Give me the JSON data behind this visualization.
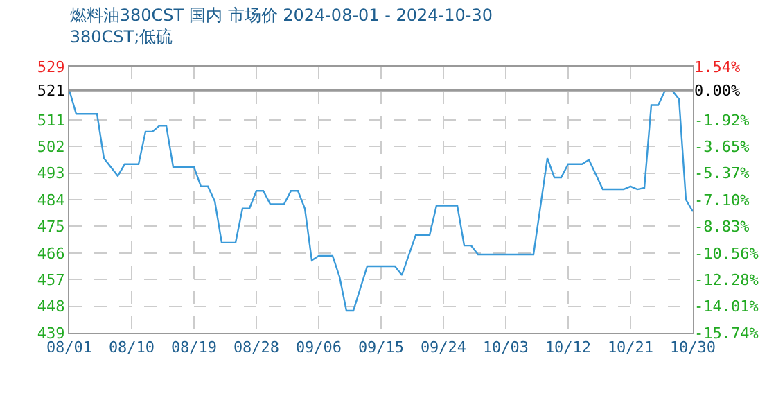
{
  "chart_data": {
    "type": "line",
    "title": "燃料油380CST 国内 市场价 2024-08-01 - 2024-10-30",
    "subtitle": "380CST;低硫",
    "x": [
      "2024-08-01",
      "2024-08-02",
      "2024-08-05",
      "2024-08-06",
      "2024-08-08",
      "2024-08-09",
      "2024-08-11",
      "2024-08-12",
      "2024-08-13",
      "2024-08-14",
      "2024-08-15",
      "2024-08-16",
      "2024-08-19",
      "2024-08-20",
      "2024-08-21",
      "2024-08-22",
      "2024-08-23",
      "2024-08-25",
      "2024-08-26",
      "2024-08-27",
      "2024-08-28",
      "2024-08-29",
      "2024-08-30",
      "2024-09-01",
      "2024-09-02",
      "2024-09-03",
      "2024-09-04",
      "2024-09-05",
      "2024-09-06",
      "2024-09-08",
      "2024-09-09",
      "2024-09-10",
      "2024-09-11",
      "2024-09-13",
      "2024-09-17",
      "2024-09-18",
      "2024-09-20",
      "2024-09-22",
      "2024-09-23",
      "2024-09-26",
      "2024-09-27",
      "2024-09-28",
      "2024-09-29",
      "2024-10-07",
      "2024-10-09",
      "2024-10-10",
      "2024-10-11",
      "2024-10-12",
      "2024-10-14",
      "2024-10-15",
      "2024-10-17",
      "2024-10-20",
      "2024-10-21",
      "2024-10-22",
      "2024-10-23",
      "2024-10-24",
      "2024-10-25",
      "2024-10-26",
      "2024-10-27",
      "2024-10-28",
      "2024-10-29",
      "2024-10-30"
    ],
    "series": [
      {
        "color": "#3a9ad9",
        "values": [
          521,
          513,
          513,
          498,
          492,
          496,
          496,
          507,
          507,
          509,
          509,
          495,
          495,
          488.5,
          488.5,
          483.5,
          469.5,
          469.5,
          481,
          481,
          487,
          487,
          482.5,
          482.5,
          487,
          487,
          481,
          463.5,
          465,
          465,
          458,
          446.5,
          446.5,
          461.5,
          461.5,
          458.5,
          472,
          472,
          482,
          482,
          468.5,
          468.5,
          465.5,
          465.5,
          498,
          491.5,
          491.5,
          496,
          496,
          497.5,
          487.5,
          487.5,
          488.5,
          487.5,
          488,
          516,
          516,
          521,
          521,
          518,
          484,
          480
        ]
      }
    ],
    "xlim": [
      "2024-08-01",
      "2024-10-30"
    ],
    "xticks": [
      {
        "value": "2024-08-01",
        "label": "08/01"
      },
      {
        "value": "2024-08-10",
        "label": "08/10"
      },
      {
        "value": "2024-08-19",
        "label": "08/19"
      },
      {
        "value": "2024-08-28",
        "label": "08/28"
      },
      {
        "value": "2024-09-06",
        "label": "09/06"
      },
      {
        "value": "2024-09-15",
        "label": "09/15"
      },
      {
        "value": "2024-09-24",
        "label": "09/24"
      },
      {
        "value": "2024-10-03",
        "label": "10/03"
      },
      {
        "value": "2024-10-12",
        "label": "10/12"
      },
      {
        "value": "2024-10-21",
        "label": "10/21"
      },
      {
        "value": "2024-10-30",
        "label": "10/30"
      }
    ],
    "ylim": [
      439,
      529
    ],
    "yticks": [
      439,
      448,
      457,
      466,
      475,
      484,
      493,
      502,
      511,
      521,
      529
    ],
    "y2lim": [
      -15.74,
      1.54
    ],
    "y2ticks": [
      {
        "value": -15.74,
        "label": "-15.74%"
      },
      {
        "value": -14.01,
        "label": "-14.01%"
      },
      {
        "value": -12.28,
        "label": "-12.28%"
      },
      {
        "value": -10.56,
        "label": "-10.56%"
      },
      {
        "value": -8.83,
        "label": "-8.83%"
      },
      {
        "value": -7.1,
        "label": "-7.10%"
      },
      {
        "value": -5.37,
        "label": "-5.37%"
      },
      {
        "value": -3.65,
        "label": "-3.65%"
      },
      {
        "value": -1.92,
        "label": "-1.92%"
      },
      {
        "value": 0,
        "label": "0.00%"
      },
      {
        "value": 1.54,
        "label": "1.54%"
      }
    ],
    "ref_lines": [
      {
        "axis": "y",
        "value": 521,
        "color": "#999999"
      }
    ],
    "grid": true,
    "marker": "none",
    "line_style": "solid"
  }
}
